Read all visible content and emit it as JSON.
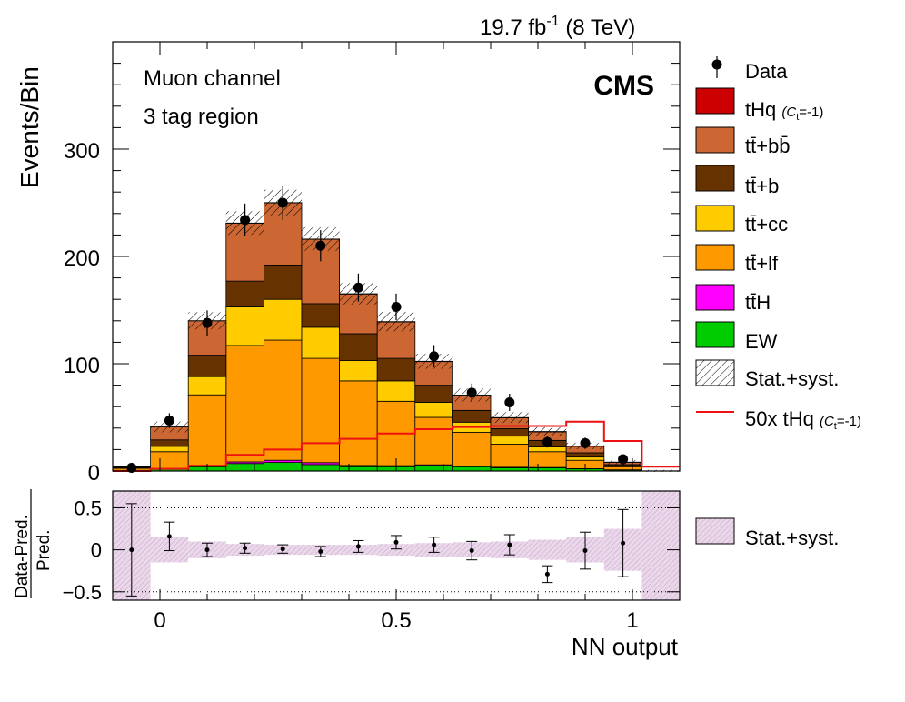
{
  "header": {
    "lumi": "19.7 fb",
    "lumi_exp": "-1",
    "energy": "(8 TeV)",
    "experiment": "CMS",
    "channel": "Muon channel",
    "region": "3 tag region"
  },
  "legend": {
    "data": "Data",
    "thq": "tHq",
    "thq_suffix": "(C",
    "thq_sub": "t",
    "thq_tail": "=-1)",
    "ttbb": "tt̄+bb̄",
    "ttb": "tt̄+b",
    "ttcc": "tt̄+cc",
    "ttlf": "tt̄+lf",
    "tth": "tt̄H",
    "ew": "EW",
    "unc": "Stat.+syst.",
    "signal": "50x tHq",
    "ratio_unc": "Stat.+syst."
  },
  "colors": {
    "thq": "#cc0000",
    "ttbb": "#cc6633",
    "ttb": "#663300",
    "ttcc": "#ffcc00",
    "ttlf": "#ff9900",
    "tth": "#ff00ff",
    "ew": "#00cc00",
    "signal": "#ee1111",
    "ratio_band": "#e6cce6"
  },
  "chart_data": [
    {
      "type": "bar",
      "stacked": true,
      "title": "",
      "xlabel": "NN output",
      "ylabel": "Events/Bin",
      "xlim": [
        -0.1,
        1.1
      ],
      "ylim": [
        0,
        400
      ],
      "yticks": [
        0,
        100,
        200,
        300
      ],
      "xticks": [
        0,
        0.5,
        1
      ],
      "bin_edges": [
        -0.1,
        -0.02,
        0.06,
        0.14,
        0.22,
        0.3,
        0.38,
        0.46,
        0.54,
        0.62,
        0.7,
        0.78,
        0.86,
        0.94,
        1.02,
        1.1
      ],
      "series": [
        {
          "name": "EW",
          "values": [
            0.5,
            2,
            4,
            7,
            8,
            6,
            4,
            4,
            5,
            4,
            3,
            3,
            2,
            1,
            0
          ]
        },
        {
          "name": "tt̄H",
          "values": [
            0.1,
            0.3,
            0.8,
            1.5,
            2,
            1.8,
            1.2,
            1,
            0.8,
            0.6,
            0.5,
            0.3,
            0.2,
            0.1,
            0
          ]
        },
        {
          "name": "tt̄+lf",
          "values": [
            1.9,
            15.7,
            66.2,
            108.5,
            112,
            97.2,
            78.8,
            60,
            44.2,
            31.4,
            21.5,
            14.7,
            7.8,
            2.9,
            0
          ]
        },
        {
          "name": "tt̄+cc",
          "values": [
            0.5,
            5,
            17,
            36,
            38,
            29,
            19,
            19,
            14,
            9.5,
            7.5,
            4.5,
            3,
            1,
            0
          ]
        },
        {
          "name": "tt̄+b",
          "values": [
            0.5,
            6,
            20,
            24,
            32,
            22,
            25,
            21,
            16,
            11,
            7,
            6,
            4,
            1,
            0
          ]
        },
        {
          "name": "tt̄+bb̄",
          "values": [
            0.5,
            12,
            32,
            54,
            58,
            60,
            37,
            34,
            22,
            14,
            10,
            8,
            6,
            2,
            0
          ]
        },
        {
          "name": "tHq (Ct=-1)",
          "values": [
            0,
            0.02,
            0.06,
            0.11,
            0.16,
            0.2,
            0.23,
            0.26,
            0.28,
            0.3,
            0.31,
            0.32,
            0.32,
            0.28,
            0.1
          ]
        }
      ],
      "uncertainty_halfwidth": [
        1,
        5,
        8,
        11,
        12,
        11,
        10,
        9,
        7,
        6,
        5,
        4,
        3,
        2,
        1
      ],
      "signal_50x": {
        "name": "50x tHq (Ct=-1)",
        "values": [
          0,
          2,
          5,
          15,
          20,
          26,
          30,
          35,
          39,
          41,
          42,
          42,
          46,
          28,
          4
        ]
      },
      "data": {
        "name": "Data",
        "x": [
          -0.06,
          0.02,
          0.1,
          0.18,
          0.26,
          0.34,
          0.42,
          0.5,
          0.58,
          0.66,
          0.74,
          0.82,
          0.9,
          0.98
        ],
        "y": [
          3,
          47,
          138,
          234,
          250,
          210,
          171,
          153,
          107,
          73,
          64,
          27,
          26,
          11
        ]
      },
      "legend_position": "right outside"
    },
    {
      "type": "scatter",
      "title": "",
      "xlabel": "NN output",
      "ylabel": "Data-Pred. / Pred.",
      "xlim": [
        -0.1,
        1.1
      ],
      "ylim": [
        -0.6,
        0.7
      ],
      "yticks": [
        -0.5,
        0,
        0.5
      ],
      "y_tick_labels": [
        "−0.5",
        "0",
        "0.5"
      ],
      "x": [
        -0.06,
        0.02,
        0.1,
        0.18,
        0.26,
        0.34,
        0.42,
        0.5,
        0.58,
        0.66,
        0.74,
        0.82,
        0.9,
        0.98
      ],
      "values": [
        0.0,
        0.16,
        0.0,
        0.02,
        0.01,
        -0.02,
        0.04,
        0.09,
        0.06,
        -0.01,
        0.06,
        -0.29,
        -0.01,
        0.08
      ],
      "errors": [
        0.55,
        0.17,
        0.08,
        0.06,
        0.05,
        0.06,
        0.07,
        0.08,
        0.09,
        0.11,
        0.12,
        0.1,
        0.22,
        0.4
      ],
      "band_halfwidth": [
        0.9,
        0.15,
        0.1,
        0.07,
        0.06,
        0.06,
        0.06,
        0.07,
        0.08,
        0.09,
        0.1,
        0.12,
        0.15,
        0.25,
        1.0
      ]
    }
  ]
}
